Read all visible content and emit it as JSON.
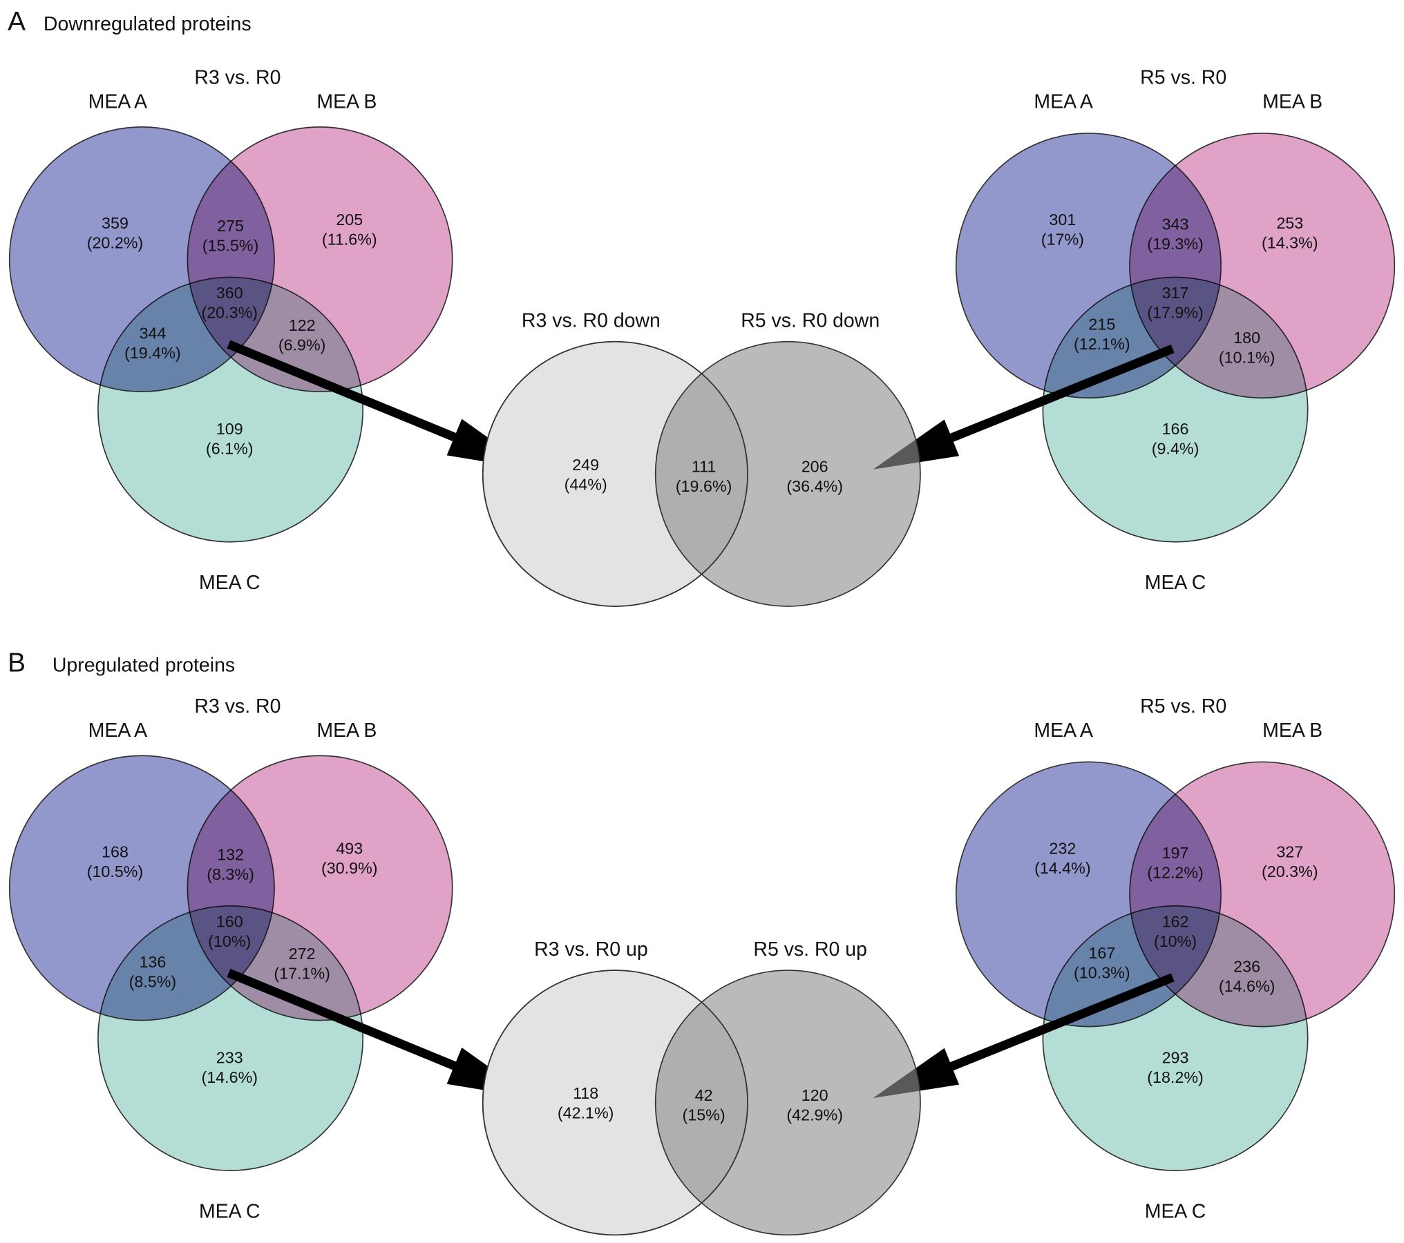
{
  "panels": [
    {
      "label": "A",
      "title": "Downregulated proteins",
      "venns": [
        {
          "title": "R3 vs. R0",
          "sets": [
            "MEA A",
            "MEA B",
            "MEA C"
          ],
          "regions": [
            {
              "count": 359,
              "pct": "(20.2%)"
            },
            {
              "count": 275,
              "pct": "(15.5%)"
            },
            {
              "count": 205,
              "pct": "(11.6%)"
            },
            {
              "count": 360,
              "pct": "(20.3%)"
            },
            {
              "count": 344,
              "pct": "(19.4%)"
            },
            {
              "count": 122,
              "pct": "(6.9%)"
            },
            {
              "count": 109,
              "pct": "(6.1%)"
            }
          ]
        },
        {
          "title": "R5 vs. R0",
          "sets": [
            "MEA A",
            "MEA B",
            "MEA C"
          ],
          "regions": [
            {
              "count": 301,
              "pct": "(17%)"
            },
            {
              "count": 343,
              "pct": "(19.3%)"
            },
            {
              "count": 253,
              "pct": "(14.3%)"
            },
            {
              "count": 317,
              "pct": "(17.9%)"
            },
            {
              "count": 215,
              "pct": "(12.1%)"
            },
            {
              "count": 180,
              "pct": "(10.1%)"
            },
            {
              "count": 166,
              "pct": "(9.4%)"
            }
          ]
        }
      ],
      "pair": {
        "sets": [
          "R3 vs. R0 down",
          "R5 vs. R0 down"
        ],
        "regions": [
          {
            "count": 249,
            "pct": "(44%)"
          },
          {
            "count": 111,
            "pct": "(19.6%)"
          },
          {
            "count": 206,
            "pct": "(36.4%)"
          }
        ]
      }
    },
    {
      "label": "B",
      "title": "Upregulated proteins",
      "venns": [
        {
          "title": "R3 vs. R0",
          "sets": [
            "MEA A",
            "MEA B",
            "MEA C"
          ],
          "regions": [
            {
              "count": 168,
              "pct": "(10.5%)"
            },
            {
              "count": 132,
              "pct": "(8.3%)"
            },
            {
              "count": 493,
              "pct": "(30.9%)"
            },
            {
              "count": 160,
              "pct": "(10%)"
            },
            {
              "count": 136,
              "pct": "(8.5%)"
            },
            {
              "count": 272,
              "pct": "(17.1%)"
            },
            {
              "count": 233,
              "pct": "(14.6%)"
            }
          ]
        },
        {
          "title": "R5 vs. R0",
          "sets": [
            "MEA A",
            "MEA B",
            "MEA C"
          ],
          "regions": [
            {
              "count": 232,
              "pct": "(14.4%)"
            },
            {
              "count": 197,
              "pct": "(12.2%)"
            },
            {
              "count": 327,
              "pct": "(20.3%)"
            },
            {
              "count": 162,
              "pct": "(10%)"
            },
            {
              "count": 167,
              "pct": "(10.3%)"
            },
            {
              "count": 236,
              "pct": "(14.6%)"
            },
            {
              "count": 293,
              "pct": "(18.2%)"
            }
          ]
        }
      ],
      "pair": {
        "sets": [
          "R3 vs. R0 up",
          "R5 vs. R0 up"
        ],
        "regions": [
          {
            "count": 118,
            "pct": "(42.1%)"
          },
          {
            "count": 42,
            "pct": "(15%)"
          },
          {
            "count": 120,
            "pct": "(42.9%)"
          }
        ]
      }
    }
  ]
}
